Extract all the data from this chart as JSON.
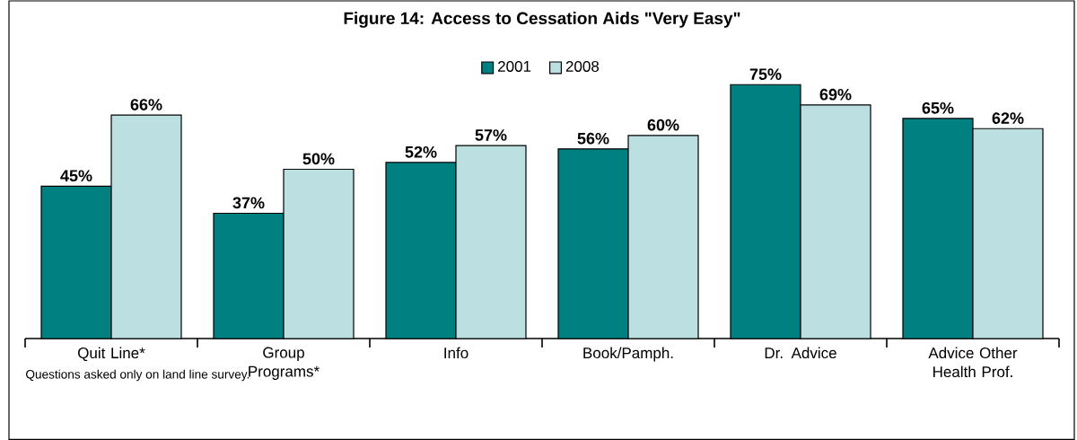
{
  "chart_data": {
    "type": "bar",
    "title": "Figure 14: Access to Cessation Aids \"Very Easy\"",
    "categories": [
      "Quit Line*",
      "Group Programs*",
      "Info",
      "Book/Pamph.",
      "Dr. Advice",
      "Advice Other Health Prof."
    ],
    "series": [
      {
        "name": "2001",
        "color": "#008080",
        "values": [
          45,
          37,
          52,
          56,
          75,
          65
        ],
        "value_labels": [
          "45%",
          "37%",
          "52%",
          "56%",
          "75%",
          "65%"
        ]
      },
      {
        "name": "2008",
        "color": "#bce0e2",
        "values": [
          66,
          50,
          57,
          60,
          69,
          62
        ],
        "value_labels": [
          "66%",
          "50%",
          "57%",
          "60%",
          "69%",
          "62%"
        ]
      }
    ],
    "ylim": [
      0,
      100
    ],
    "legend": "top",
    "annotations": [
      "Questions asked only on land line survey."
    ]
  }
}
